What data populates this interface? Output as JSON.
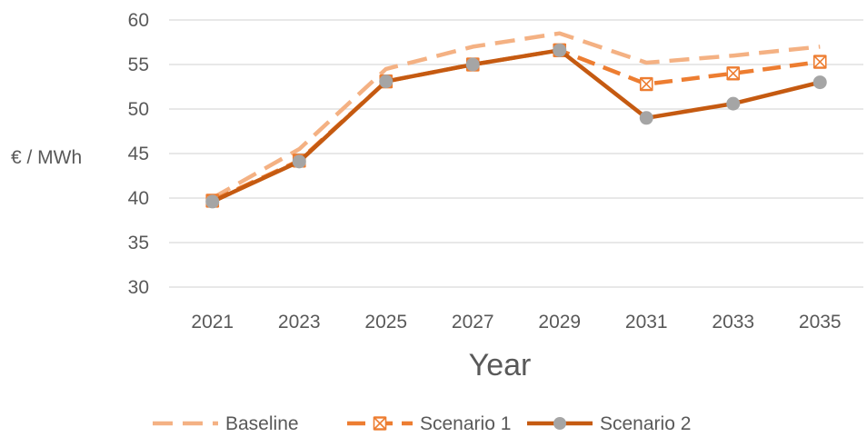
{
  "chart_data": {
    "type": "line",
    "x": [
      2021,
      2023,
      2025,
      2027,
      2029,
      2031,
      2033,
      2035
    ],
    "xlabel": "Year",
    "ylabel": "€ / MWh",
    "ylim": [
      30,
      60
    ],
    "yticks": [
      30,
      35,
      40,
      45,
      50,
      55,
      60
    ],
    "grid": true,
    "legend_position": "bottom",
    "series": [
      {
        "name": "Baseline",
        "values": [
          40.0,
          45.5,
          54.5,
          57.0,
          58.5,
          55.2,
          56.0,
          57.0
        ],
        "color": "#F4B183",
        "style": "dashed",
        "marker": "none"
      },
      {
        "name": "Scenario 1",
        "values": [
          39.7,
          44.2,
          53.1,
          55.0,
          56.6,
          52.8,
          54.0,
          55.3
        ],
        "color": "#ED7D31",
        "style": "dashed",
        "marker": "x-box"
      },
      {
        "name": "Scenario 2",
        "values": [
          39.6,
          44.1,
          53.1,
          55.0,
          56.6,
          49.0,
          50.6,
          53.0
        ],
        "color": "#C55A11",
        "style": "solid",
        "marker": "circle",
        "marker_color": "#A5A5A5"
      }
    ]
  }
}
